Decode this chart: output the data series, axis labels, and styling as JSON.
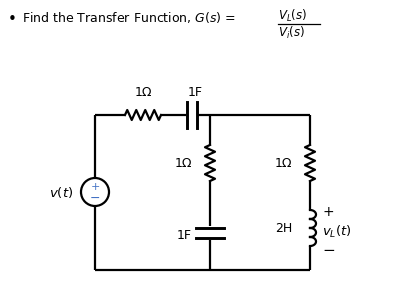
{
  "bg_color": "#ffffff",
  "line_color": "#000000",
  "label_1ohm_top": "1Ω",
  "label_1F_top": "1F",
  "label_1ohm_mid": "1Ω",
  "label_1ohm_right": "1Ω",
  "label_1F_bot": "1F",
  "label_2H": "2H",
  "label_vt": "$v(t)$",
  "label_vL": "$v_L(t)$",
  "plus": "+",
  "minus": "−",
  "bullet": "•",
  "title_line1": "Find the Transfer Function, $G(s) = $",
  "title_frac_num": "$V_L(s)$",
  "title_frac_den": "$V_i(s)$"
}
